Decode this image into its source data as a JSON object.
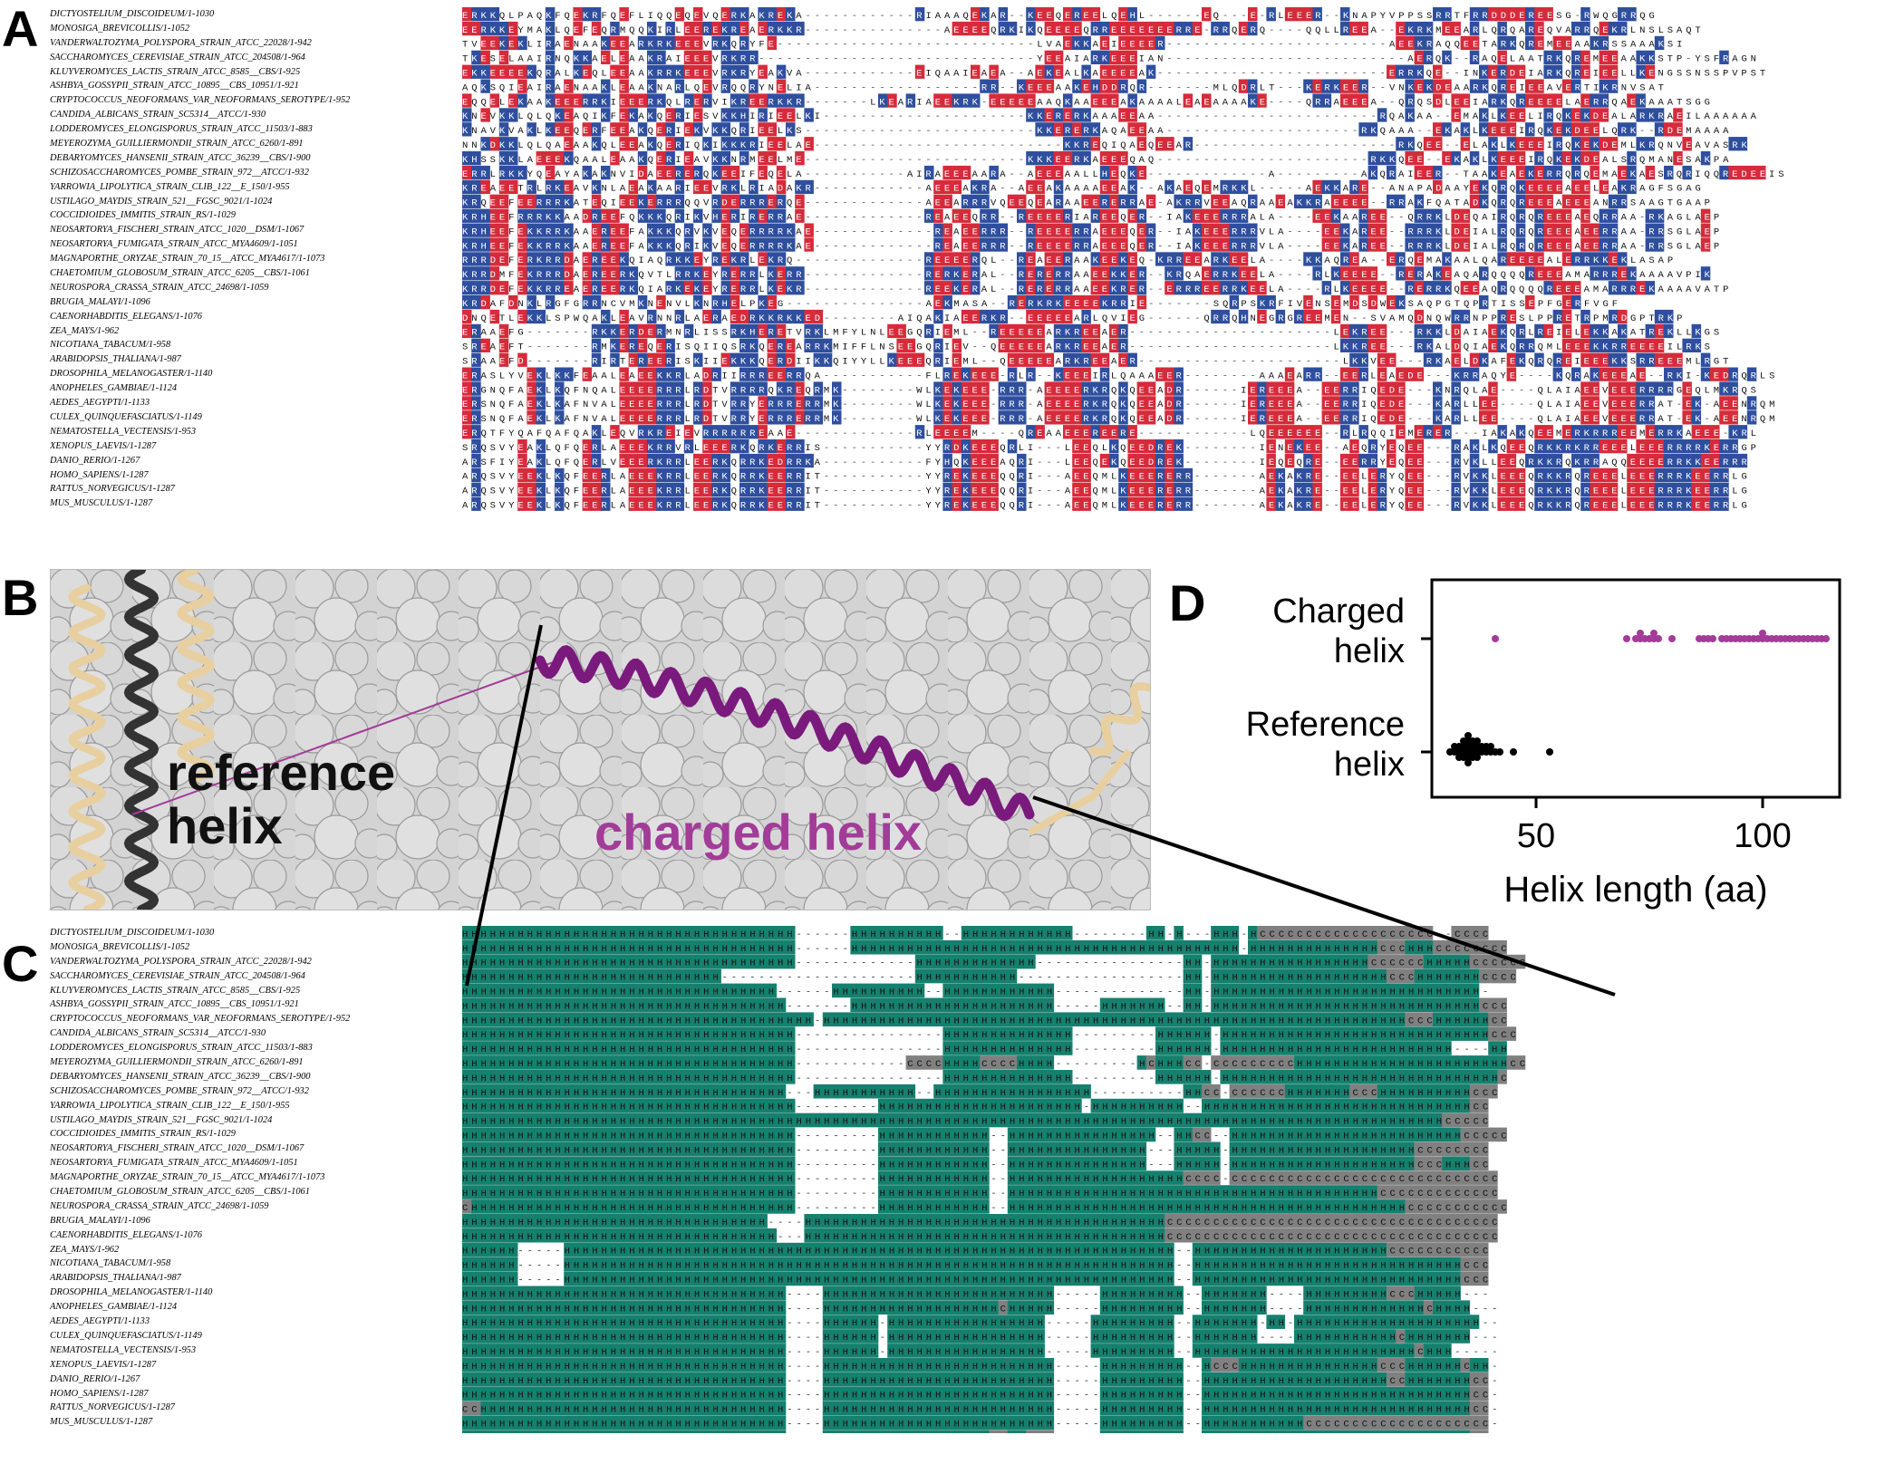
{
  "panel_letters": {
    "a": "A",
    "b": "B",
    "c": "C",
    "d": "D"
  },
  "species": [
    "DICTYOSTELIUM_DISCOIDEUM/1-1030",
    "MONOSIGA_BREVICOLLIS/1-1052",
    "VANDERWALTOZYMA_POLYSPORA_STRAIN_ATCC_22028/1-942",
    "SACCHAROMYCES_CEREVISIAE_STRAIN_ATCC_204508/1-964",
    "KLUYVEROMYCES_LACTIS_STRAIN_ATCC_8585__CBS/1-925",
    "ASHBYA_GOSSYPII_STRAIN_ATCC_10895__CBS_10951/1-921",
    "CRYPTOCOCCUS_NEOFORMANS_VAR_NEOFORMANS_SEROTYPE/1-952",
    "CANDIDA_ALBICANS_STRAIN_SC5314__ATCC/1-930",
    "LODDEROMYCES_ELONGISPORUS_STRAIN_ATCC_11503/1-883",
    "MEYEROZYMA_GUILLIERMONDII_STRAIN_ATCC_6260/1-891",
    "DEBARYOMYCES_HANSENII_STRAIN_ATCC_36239__CBS/1-900",
    "SCHIZOSACCHAROMYCES_POMBE_STRAIN_972__ATCC/1-932",
    "YARROWIA_LIPOLYTICA_STRAIN_CLIB_122__E_150/1-955",
    "USTILAGO_MAYDIS_STRAIN_521__FGSC_9021/1-1024",
    "COCCIDIOIDES_IMMITIS_STRAIN_RS/1-1029",
    "NEOSARTORYA_FISCHERI_STRAIN_ATCC_1020__DSM/1-1067",
    "NEOSARTORYA_FUMIGATA_STRAIN_ATCC_MYA4609/1-1051",
    "MAGNAPORTHE_ORYZAE_STRAIN_70_15__ATCC_MYA4617/1-1073",
    "CHAETOMIUM_GLOBOSUM_STRAIN_ATCC_6205__CBS/1-1061",
    "NEUROSPORA_CRASSA_STRAIN_ATCC_24698/1-1059",
    "BRUGIA_MALAYI/1-1096",
    "CAENORHABDITIS_ELEGANS/1-1076",
    "ZEA_MAYS/1-962",
    "NICOTIANA_TABACUM/1-958",
    "ARABIDOPSIS_THALIANA/1-987",
    "DROSOPHILA_MELANOGASTER/1-1140",
    "ANOPHELES_GAMBIAE/1-1124",
    "AEDES_AEGYPTI/1-1133",
    "CULEX_QUINQUEFASCIATUS/1-1149",
    "NEMATOSTELLA_VECTENSIS/1-953",
    "XENOPUS_LAEVIS/1-1287",
    "DANIO_RERIO/1-1267",
    "HOMO_SAPIENS/1-1287",
    "RATTUS_NORVEGICUS/1-1287",
    "MUS_MUSCULUS/1-1287"
  ],
  "sequences": [
    "ERKKQLPAQKFQEKRFQEFLIQQEQEVQERKAKREKA------------RIAAAQEKAR--KEEQEREELQEHL------EQ---E-RLEEER--KNAPYVPPSSRRTFRRDDDEREESG-RWQGRRQG",
    "EERKKEYMAKLQEFEQRMQQKIRLEEREKREAERKKR---------------AEEEEQRKIKQEEEEQRREEEEEEERRE-RRQERQ----QQLLREEA--EKRKMEEARLQRQAREQVARRQEKRLNSLSAQT",
    "TVEEKEKLIRAENAAKEEARKRKEEEVRKQRYFE----------------------------LVAEKKAEIEEEER------------------------AEEKRAQQEETARKQREMEEAAKRSSAAAKSI",
    "TKESELAAIRNQKKAELEAAKRAIEEEVRKRR------------------------------YEEAIARKEEEIAN--------------------------AERQK--RAQELAATRKQREMEEAAKKSTP-YSFRAGN",
    "EKKEEEEKQRALKEQLEEAAKRRKEEEVRKRYEAKVA------------EIQAAIEAEA--AEKEALKAEEEEAK-------------------------ERRKQE--INKERDEIARKQREIEELLKENGSSNSSPVPST",
    "AQKSQIEAIRAENAAKLEAAKNARLQEVRQQRYNELIA------------------RR--KEEEAAKEHDDRQR-------MLQDRLT---KERKEER--VNKEKDEAARKQREIEEAVERTIKRNVSAT",
    "EQQELEKAAKEEERRKIEEERKQLRERVIKREERKKR-------LKEARIAEEKRK-EEEEEAAQKAAEEEAKAAAALEAEAAAAKE----QRRAEEEA--QRQSDLEEIARKQREEEELAERRQAEKAAATSGG",
    "KNEVKKLQLQKEAQIKFEKAKQERIESVKKHIRIEELKI----------------------KKERERKAAAEEAA------------------------RQAKAA--EMAKLKEELIRQKEKDEALARKRAEILAAAAAA",
    "KNAVKVAKLKEEQERFEEAKQERIEKVKKQRIEELKS-------------------------KKERERKAQAEEAA---------------------RKQAAA--EKAKLKEEEIRQKEKDEELQRK--RDEMAAAA",
    "NNKDKKLQLQAEAAKQLEEAKQERIQKIKKKRIEELAE---------------------------KKREQIQAEQEEAR----------------------RKQEE--ELAKLKEEEIRQKEKDEMLKRQNVEAVASRK",
    "KHSSKKLAEEEKQAALEAAKQERIEAVKKNRMEELME------------------------KKKEERKAEEEQAQ-----------------------RKKQEE--EKAKLKEEEIRQKEKDEALSRQMANESAKPA",
    "ERRLRKKYQEAYAKAKNVIDAEERERQKEEIFEQELA-----------AIRAEEEAARA--AEEEAALLHEQKE-------------A---------AKQRAIEER--TAAKEAEKERRQRQEMAEKAESRQRIQQREDEEIS",
    "KREAEETRLRKEAVKNLAEAKAARIEEVRKLRIADAKR------------AEEEAKRA--AEEAKAAAAEEAK--AKAEQEMRKKL-----AEKKARE--ANAPADAAYEKQRQKEEEEAEELEAKRAGFSGAG",
    "KRQEEFEERRRKATEQIEEKERRRQQVRDERRRERQE-------------AEEARRRVQEEQEARAAEERERRAE-AKRRVEEAQRAAEAKKRAEEEE--RRAKFQATADKQRQREEEAEEEANRRSAAGTGAAP",
    "KRHEEFRRRKKAADREEFQKKKQRIKVHERIRERRAE-------------REAEEQRR--REEEERIAREEQER--IAKEEERRRALA----EEKAAREE--QRRKLDEQAIRQRQREEEAEQRRAA-RKAGLAEP",
    "KRHEEFEKKRRKAAEREEFAKKKQRVKVEQERRRRKAE-------------REAEERRR--REEEERRAEEEQER--IAKEEERRRVLA----EEKAREE--RRRKLDEIALRQRQREEEAEERRAA-RRSGLAEP",
    "KRHEEFEKKRRKAAEREEFAKKKQRIKVEQERRRRKAE-------------REAEERRR--REEEERRAEEEQER--IAKEEERRRVLA----EEKAREE--RRRKLDEIALRQRQREEEAEERRAA-RRSGLAEP",
    "RRRDEFERKRRDAEREEKQIAQRKKEYREKRLEKRQ--------------REEEERQL--REAEERAAKEEKEQ-KRREEARKEELA----KKAQREA--ERQEMAKAALQAREEEEALERRKKEKLASAP",
    "KRRDMFEKRRRDAEREERKQVTLRRKEYRERRLKERR-------------RERKERAL--RERERRAAEEKKER--KRQAERRKEELA----RLKEEEE--RERAKEAQARQQQQREEEAMARRREKAAAAVPIK",
    "KRRDEFEKKRREAEREERKQIARKEKEYRERRLKEKR-------------REEKERAL--RERERRAAEEKRER--ERRREERRKEELA----RLKEEEE--RERRKQEEAQRQQQQREEEAMARRREKAAAAVATP",
    "KRDAFDNKLRGFGRRNCVMKNENVLKNRHELPKEG---------------AEKMASA--RERKRKEEEEKRRIE-------SQRPSKRFIVENSEMDSDWEKSAQPGTQPRTISSEPFGERFVGF",
    "DNQETLEKKLSPWQAKLEAVRNNRLAERAEDRKKRKKED--------AIQAKIAEERKR--EEEEEARLQVIEG------QRRQHNEGRGREEMEN--SVAMQDNQWRRNPPRESLPPRETRPMRDGPTRKP",
    "ERAAEFG-------RKKERDERMNRLISSRKHERETVRKLMFYLNLEEGQRIEML--REEEEEARKREEAER----------------------LEKREE---RKKLDAIAEKQRLREIELEKKAKATREKLLKGS",
    "SREAEFT-------RMKEREQERISQIIQSRKQEREARRKMIFFLNSEEGQRIEV--QEEEEEARKREEAER----------------------LKKREE---RKALDQIAEKQRRQMLEEEKKRREEEEILRKS",
    "SRAAEFD-------RIRTEREERISKIIEKKKQERDIIKKQIYYLLKEEEQRIEML--QEEEEEARKREEAER----------------------LKKVEE---RKAELDKAFEKQRQREIEEEKKSRREEEMLRGT",
    "ERASLYVEKLKKFEAALEAEEKKRLADRIIRRREERRQA-----------FLREKEEE-RLR--KEEEIRLQAAAEER--------AAAEARR--EERLEAEDE---KRRAQYE----KQRAKEEEAE--RKI-KEDRQRLS",
    "ERGNQFAEKLKQFNQALEEEERRRLRDTVRRRRQKREQRMK--------WLKEKEEE-RRR-AEEEERKRQKQEEADR------IEREEEA--EERRIQEDE---KNRQLAE----QLAIAEEVEEERRRRGEQLMKRQS",
    "ERSNQFAEKLKAFNVALEEEERRRLRDTVRRYERRRERRMK--------WLKEKEEE-RRR-AEEEERKRQKQEEADR------IEREEEA--EERRIQEDE---KARLLEE----QLAIAEEVEEERRAT-EK-AEENRQM",
    "ERSNQFAEKLKAFNVALEEEERRRLRDTVRRYERRRERRMK--------WLKEKEEE-RRR-AEEEERKRQKQEEADR------IEREEEA--EERRIQEDE---KARLLEE----QLAIAEEVEEERRAT-EK-AEENRQM",
    "ERQTFYQAFQAFQAKLEQVRKREIEVRRRRRREAAE-------------RLEEEEM----QREAAEEEREERE------------LQEEEEEE--RLRQQIEMERER---IAKAKQEEMERKRRREEMERRKAEEE-KRL",
    "SRQSVYEAKLQFQERLAEEEKRRVRLEEERKQRKERRIS-----------YYRDKEEEQRLI---LEEQLKQEEDREK--------IENEKEE--AEQRYEQEE---RAKLKQEEQRKKRKRREEELEEERRRRKERRGP",
    "ARSFIYEAKLQFQERLVEEERKRRLEERKQRRKEDRRKA-----------FYHQKEEEAQRI---LEEQEKQEEDREK--------IEQEQRE--EERRYEQEE---RVKLLEEQRKKRQKRRAQQEEEERRKKEERRR",
    "ARQSVYEEKLKQFEERLAEEEKRRLEERKQRRKEERRIT-----------YYREKEEEQQRI---AEEQMLKEEERERR-------AEKAKRE--EELERYQEE---RVKKLEEEQRKKRQREEELEEERRRKEERRLG",
    "ARQSVYEEKLKQFEERLAEEEKRRLEERKQRRKEERRIT-----------YYREKEEEQQRI---AEEQMLKEEERERR-------AEKAKRE--EELERYQEE---RVKKLEEEQRKKRQREEELEEERRRKEERRLG",
    "ARQSVYEEKLKQFEERLAEEEKRRLEERKQRRKEERRIT-----------YYREKEEEQQRI---AEEQMLKEEERERR-------AEKAKRE--EELERYQEE---RVKKLEEEQRKKRQREEELEEERRRKEERRLG"
  ],
  "structure": [
    "HHHHHHHHHHHHHHHHHHHHHHHHHHHHHHHHHHHH------HHHHHHHHHH--HHHHHHHHHHHH--------HH-H---HHH-HCCCCCCCCCCCCCCCCCCC--CCCC",
    "HHHHHHHHHHHHHHHHHHHHHHHHHHHHHHHHHHHH------HHHHHHHHHHHHHHHHHHHHHHHHHHHHHHHHHHHHHHHHHH-HHHHHHHHHHHHHHCCCHHHCCCCCCCC",
    "HHHHHHHHHHHHHHHHHHHHHHHHHHHHHHHHHHHH-------------HHHHHHHHHHHHH----------------HH-HHHHHHHHHHHHHHHHHCCCCCCHHHHHCCCCCC",
    "HHHHHHHHHHHHHHHHHHHHHHHHHHHH---------------------HHHHHHHHHHH------------------HH-HHHHHHHHHHHHHHHHHHHCCCHHHHHHHCCCC",
    "HHHHHHHHHHHHHHHHHHHHHHHHHHHHHHHHHH------HHHHHHHHHH--HHHHHHHHHHHH--------------HH-HHHHHHHHHHHHHHHHHHHHHHHHHHHHH-",
    "HHHHHHHHHHHHHHHHHHHHHHHHHHHHHHHHHHH-------HHHHHHHHHHHHHHHHHHHHHH-----HHHHHHH--HH-HHHHHHHHHHHHHHHHHHHHHHHHHHHHHCCC",
    "HHHHHHHHHHHHHHHHHHHHHHHHHHHHHHHHHHHHHH-HHHHHHHHHHHHHHHHHHHHHHHHHHHHHHHHHHHHHHHHHHHHHHHHHHHHHHHHHHHHHHHCCCHHHHHHCC",
    "HHHHHHHHHHHHHHHHHHHHHHHHHHHHHHHHHHHH----------------HHHHHHHHHHHHHH---------HHHHHH-HHHHHHHHHHHHHHHHHHHHHHHHHHHHHCCC",
    "HHHHHHHHHHHHHHHHHHHHHHHHHHHHHHHHHHHH----------------HHHHHHHHHHHHHH---------HHHHHH-HHHHHHHHHHHHHHHHHHHHHHHHH----HH",
    "HHHHHHHHHHHHHHHHHHHHHHHHHHHHHHHHHHHH------------CCCCHHHHCCCCHHHH---------HCHHHCC-CCCCCCCCCHHHHHHHHHHHHHHHHHHHHHHHCC",
    "HHHHHHHHHHHHHHHHHHHHHHHHHHHHHHHHHHHH----------------HHHHHHHHHHHHHH---------HHHHHH-HHHHHHHHHHHHHHHHHHHHHHHHHHHHHHC",
    "HHHHHHHHHHHHHHHHHHHHHHHHHHHHHHHHHHH---HHHHHHHHHHH--HHHHHHHHHHHHHHHHH----------HHCC-CCCCCCHHHHHHHCCCHHHHHHHHHHCCC",
    "HHHHHHHHHHHHHHHHHHHHHHHHHHHHHHHHHHHH---------HHHHHHHHHHHHHHHHHHHHHH-HHHHHHHHHH--HHHHHHHHHHHHHHHHHHHHHHHHHHHHHCC",
    "HHHHHHHHHHHHHHHHHHHHHHHHHHHHHHHHHHHHHHHHHHHHHHHHHHHHHHHHHHHHHHHHHHHHHHHHHHHHHHHHHHHHHHHHHHHHHHHHHHHHHHHHHHCCCCC",
    "HHHHHHHHHHHHHHHHHHHHHHHHHHHHHHHHHHHH---------HHHHHHHHHHHH--HHHHHHHHHHHHHHHH--HHCC--HHHHHHHHHHHHHHHHHHHHHHHHHCCCCC",
    "HHHHHHHHHHHHHHHHHHHHHHHHHHHHHHHHHHHH---------HHHHHHHHHHHH--HHHHHHHHHHHHHHH---HHHHH-HHHHHHHHHHHHHHHHHHHHCCCCCCCC",
    "HHHHHHHHHHHHHHHHHHHHHHHHHHHHHHHHHHHH---------HHHHHHHHHHHH--HHHHHHHHHHHHHHH---HHHHH-HHHHHHHHHHHHHHHHHHHHCCCHHHCC",
    "HHHHHHHHHHHHHHHHHHHHHHHHHHHHHHHHHHHH---------HHHHHHHHHHHH--HHHHHHHHHHHHHHHHHHHCCCC-CCCCCCCCCCCCCCCCCCCCCCCCCCCCC",
    "HHHHHHHHHHHHHHHHHHHHHHHHHHHHHHHHHHHH---------HHHHHHHHHHHH--HHHHHHHHHHHHHHHHHHHHHHHHHHHHHHHHHHHHHHHHCCCCCCCCCCCCC",
    "CHHHHHHHHHHHHHHHHHHHHHHHHHHHHHHHHHHH---------HHHHHHHHHHHH--HHHHHHHHHHHHHHHHHHHHHHHHHHHHHHHHHHHHHHHHHHHCCCCCCCCCCC",
    "HHHHHHHHHHHHHHHHHHHHHHHHHHHHHHHHH----HHHHHHHHHHHHHHHHHHHHHHHHHHHHHHHHHHHHHHHCCCCCCCCCCCCCCCCCCCCCCCCCCCCCCCCCCCC",
    "HHHHHHHHHHHHHHHHHHHHHHHHHHHHHHHHHH---HHHHHHHHHHHHHHHHHHHHHHHHHHHHHHHHHHHHHHHCCCCCCCCCCCCCCCCCCCCCCCCCCCCCCCCCCCC",
    "HHHHHH-----HHHHHHHHHHHHHHHHHHHHHHHHHHHHHHHHHHHHHHHHHHHHHHHHHHHHHHHHHHHHHHHHHH--HHHHHHHHHHHHHHHHHHHHHCCCCCCCCCCC",
    "HHHHHH-----HHHHHHHHHHHHHHHHHHHHHHHHHHHHHHHHHHHHHHHHHHHHHHHHHHHHHHHHHHHHHHHHHH--HHHHHHHHHHHHHHHHHHHHHHHHHHHHHCCC",
    "HHHHHH-----HHHHHHHHHHHHHHHHHHHHHHHHHHHHHHHHHHHHHHHHHHHHHHHHHHHHHHHHHHHHHHHHHH--HHHHHHHHHHHHHHHHHHHHHHHHHHHHHCCC",
    "HHHHHHHHHHHHHHHHHHHHHHHHHHHHHHHHHHH----HHHHHHHHHHHHHHHHHHHHHHHHH-----HHHHHHHHH--HHHHHHH----HHHHHHHHHCCCHHHHH---",
    "HHHHHHHHHHHHHHHHHHHHHHHHHHHHHHHHHHH----HHHHHHHHHHHHHHHHHHHCHHHHH-----HHHHHHHHH--HHHHHHH----HHHHHHHHHHHHHCHHHH---",
    "HHHHHHHHHHHHHHHHHHHHHHHHHHHHHHHHHHH----HHHHHH-HHHHHHHHHHHHHHHHH-----HHHHHHHHH--HHHHHHH-HH-HHHHHHHHHHHHHHHHHHHH--",
    "HHHHHHHHHHHHHHHHHHHHHHHHHHHHHHHHHHH----HHHHHH-HHHHHHHHHHHHHHHHH-----HHHHHHHHH--HHHHHHH----HHHHHHHHHHHCHHHHHHH---",
    "HHHHHHHHHHHHHHHHHHHHHHHHHHHHHHHHHHH----HHHHHH-HHHHHHHHHHHHHHHHH-----HHHHHHHHH--HHHHHHHHHHHHHHHHHHHHHHHHCHHH-----",
    "HHHHHHHHHHHHHHHHHHHHHHHHHHHHHHHHHHH----HHHHHHHHHHHHHHHHHHHHHHHHH-----HHHHHHHHH--HCCCHHHHHHHHHHHHHHHCCCHHHHHHCHH-",
    "HHHHHHHHHHHHHHHHHHHHHHHHHHHHHHHHHHH----HHHHHHHHHHHHHHHHHHHHHHHHH-----HHHHHHHHH--HHHHHHHHHHHHHHHHHHHHCCHHHHHHHCC-",
    "HHHHHHHHHHHHHHHHHHHHHHHHHHHHHHHHHHH----HHHHHHHHHHHHHHHHHHHHHHHHH-----HHHHHHHHH--HHHHHHHHHHHHHHHHHHHHHHHHHHHHHCC-",
    "CCHHHHHHHHHHHHHHHHHHHHHHHHHHHHHHHHH----HHHHHHHHHHHHHHHHHHHHHHHHH-----HHHHHHHHH--HHHHHHHHHHHHHHHHHHHHHHHHHHHHHCC-",
    "HHHHHHHHHHHHHHHHHHHHHHHHHHHHHHHHHHH----HHHHHHHHHHHHHHHHHHHHHHHHH-----HHHHHHHHH--HHHHHHHHHHHCCCCCCCCCCCCCCCCCCCC-",
    "HHHHHHHHHHHHHHHHHHHHHHHHHHHHHHHHHHH----HHHHHHHHHHHHHHHHHHCCHHCCC-----HHHHHHHHH--HHHHHHHHHHHHHHHHHHHHHHHHHHHHHCC-"
  ],
  "residue_colors": {
    "positive": "#2f4f9e",
    "negative": "#d62b3a",
    "gap_text": "#555555"
  },
  "structure_colors": {
    "helix": "#16806e",
    "coil": "#808080"
  },
  "panel_b": {
    "reference_label": "reference\nhelix",
    "charged_label": "charged helix",
    "charged_color": "#a23c98",
    "helix_color": "#7a1a7c",
    "tan_color": "#e8cfa0",
    "dark_color": "#333333"
  },
  "chart_data": {
    "type": "scatter",
    "title": "",
    "xlabel": "Helix length (aa)",
    "ylabel": "",
    "xlim": [
      27,
      117
    ],
    "xticks": [
      50,
      100
    ],
    "categories": [
      "Charged\nhelix",
      "Reference\nhelix"
    ],
    "series": [
      {
        "category": "Charged\nhelix",
        "color": "#a23c98",
        "values": [
          41,
          70,
          72,
          73,
          73,
          74,
          75,
          76,
          76,
          77,
          80,
          86,
          87,
          88,
          89,
          91,
          92,
          93,
          94,
          95,
          96,
          97,
          98,
          99,
          100,
          100,
          101,
          102,
          103,
          104,
          105,
          106,
          107,
          108,
          109,
          110,
          111,
          112,
          113,
          114
        ]
      },
      {
        "category": "Reference\nhelix",
        "color": "#000000",
        "values": [
          31,
          32,
          32,
          33,
          33,
          33,
          34,
          34,
          34,
          34,
          35,
          35,
          35,
          35,
          35,
          35,
          36,
          36,
          36,
          36,
          37,
          37,
          37,
          37,
          38,
          38,
          39,
          39,
          40,
          40,
          41,
          42,
          45,
          53
        ]
      }
    ]
  }
}
